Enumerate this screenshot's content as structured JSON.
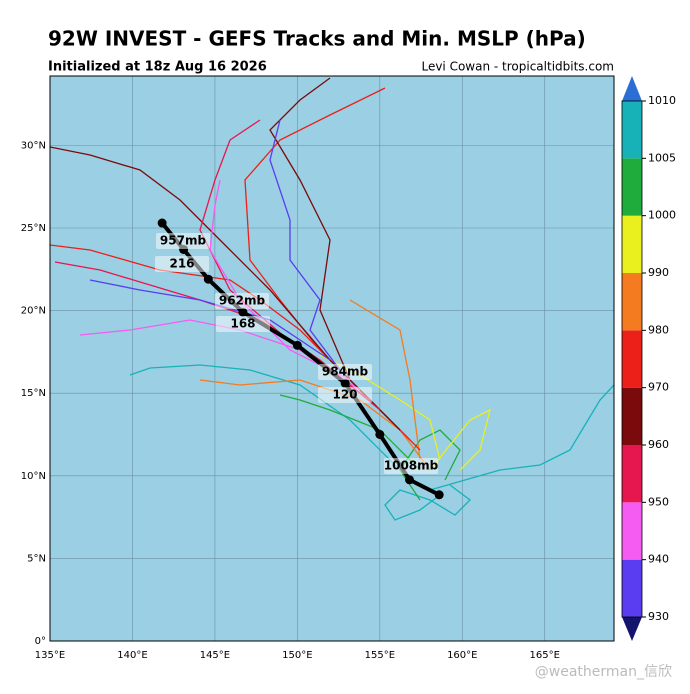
{
  "header": {
    "title": "92W INVEST - GEFS Tracks and Min. MSLP (hPa)",
    "subtitle": "Initialized at 18z Aug 16 2026",
    "credit": "Levi Cowan - tropicaltidbits.com"
  },
  "chart_data": {
    "type": "map",
    "xlim": [
      135,
      169.2
    ],
    "ylim": [
      0,
      34.2
    ],
    "xticks": [
      {
        "value": 135,
        "label": "135°E"
      },
      {
        "value": 140,
        "label": "140°E"
      },
      {
        "value": 145,
        "label": "145°E"
      },
      {
        "value": 150,
        "label": "150°E"
      },
      {
        "value": 155,
        "label": "155°E"
      },
      {
        "value": 160,
        "label": "160°E"
      },
      {
        "value": 165,
        "label": "165°E"
      }
    ],
    "yticks": [
      {
        "value": 0,
        "label": "0°"
      },
      {
        "value": 5,
        "label": "5°N"
      },
      {
        "value": 10,
        "label": "10°N"
      },
      {
        "value": 15,
        "label": "15°N"
      },
      {
        "value": 20,
        "label": "20°N"
      },
      {
        "value": 25,
        "label": "25°N"
      },
      {
        "value": 30,
        "label": "30°N"
      }
    ],
    "mean_track": {
      "color": "#000000",
      "lon": [
        158.6,
        156.8,
        155.0,
        152.9,
        150.0,
        146.7,
        144.6,
        143.1,
        141.8
      ],
      "lat": [
        8.85,
        9.76,
        12.5,
        15.6,
        17.9,
        19.9,
        21.9,
        23.7,
        25.3
      ]
    },
    "annotations": [
      "1008mb",
      "120",
      "984mb",
      "168",
      "962mb",
      "216",
      "957mb"
    ],
    "colorbar": {
      "ticks": [
        930,
        940,
        950,
        960,
        970,
        980,
        990,
        1000,
        1005,
        1010
      ],
      "colors": [
        "#5a3df0",
        "#f55cf2",
        "#e6174f",
        "#7a0a0c",
        "#ec2018",
        "#f47b20",
        "#e9f01e",
        "#1fac3c",
        "#17b2b8"
      ]
    }
  },
  "watermark": "@weatherman_信欣"
}
